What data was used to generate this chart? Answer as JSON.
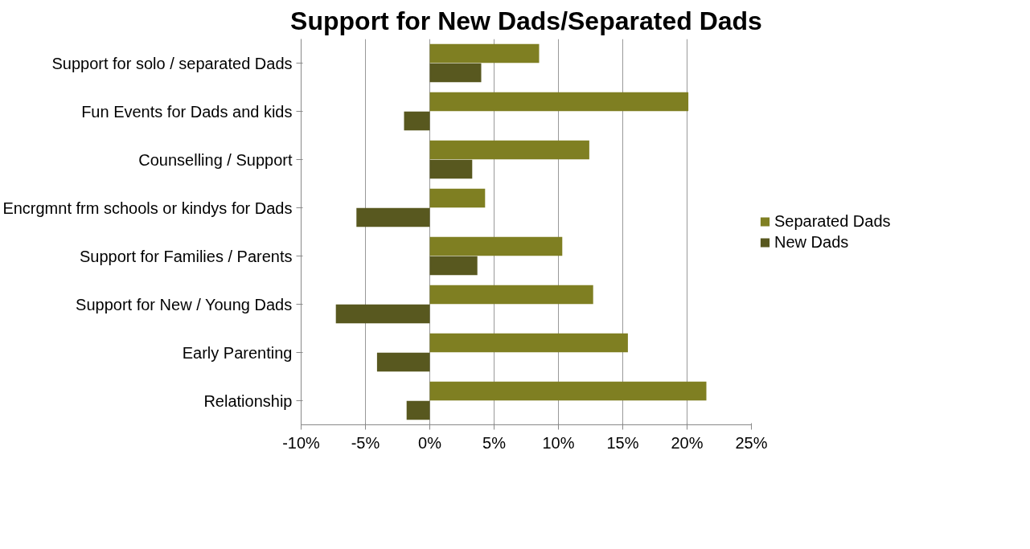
{
  "chart_data": {
    "type": "bar",
    "orientation": "horizontal",
    "title": "Support for New Dads/Separated Dads",
    "categories": [
      "Support for solo / separated Dads",
      "Fun Events for Dads and kids",
      "Counselling / Support",
      "Encrgmnt frm schools or kindys for Dads",
      "Support for Families / Parents",
      "Support for New / Young Dads",
      "Early Parenting",
      "Relationship"
    ],
    "series": [
      {
        "name": "Separated Dads",
        "color": "#7f7f22",
        "values": [
          8.5,
          20.1,
          12.4,
          4.3,
          10.3,
          12.7,
          15.4,
          21.5
        ]
      },
      {
        "name": "New Dads",
        "color": "#58581f",
        "values": [
          4.0,
          -2.0,
          3.3,
          -5.7,
          3.7,
          -7.3,
          -4.1,
          -1.8
        ]
      }
    ],
    "xlim": [
      -10,
      25
    ],
    "xticks": [
      {
        "value": -10,
        "label": "-10%"
      },
      {
        "value": -5,
        "label": "-5%"
      },
      {
        "value": 0,
        "label": "0%"
      },
      {
        "value": 5,
        "label": "5%"
      },
      {
        "value": 10,
        "label": "10%"
      },
      {
        "value": 15,
        "label": "15%"
      },
      {
        "value": 20,
        "label": "20%"
      },
      {
        "value": 25,
        "label": "25%"
      }
    ],
    "grid": "x",
    "legend": "right"
  }
}
